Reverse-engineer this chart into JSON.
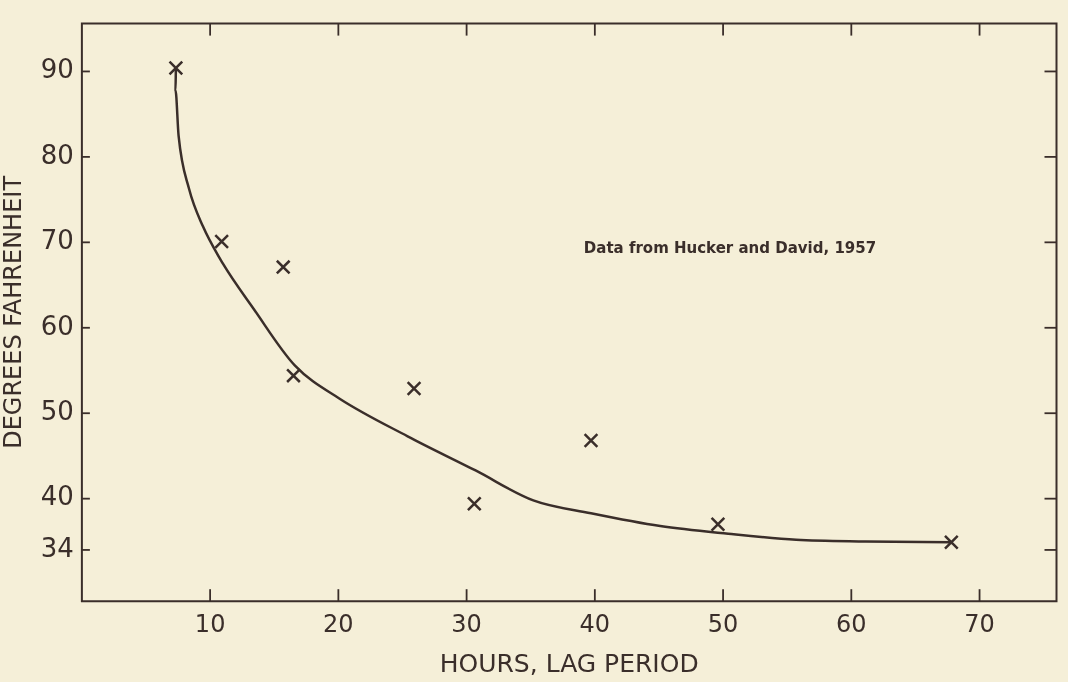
{
  "chart_data": {
    "type": "scatter",
    "xlabel": "HOURS, LAG PERIOD",
    "ylabel": "DEGREES FAHRENHEIT",
    "annotations": [
      "Data from Hucker and David, 1957"
    ],
    "xlim": [
      0,
      76
    ],
    "ylim": [
      28,
      95.6
    ],
    "xticks": [
      10,
      20,
      30,
      40,
      50,
      60,
      70
    ],
    "yticks": [
      34,
      40,
      50,
      60,
      70,
      80,
      90
    ],
    "grid": false,
    "legend": false,
    "series": [
      {
        "marker": "cross",
        "color": "#3a2e2a",
        "x": [
          7.33,
          10.9,
          15.7,
          16.5,
          25.9,
          30.6,
          39.7,
          49.6,
          67.8
        ],
        "values": [
          90.4,
          70.1,
          67.1,
          54.4,
          52.9,
          39.4,
          46.8,
          37.0,
          34.9
        ]
      },
      {
        "type": "line",
        "marker": "none",
        "color": "#3a2e2a",
        "x": [
          7.33,
          7.3,
          7.54,
          8.35,
          9.43,
          11.0,
          13.4,
          16.6,
          20.1,
          25.4,
          30.7,
          35.2,
          39.7,
          45.1,
          50.4,
          55.7,
          61.1,
          67.8
        ],
        "values": [
          90.4,
          87.8,
          82.5,
          76.3,
          71.9,
          67.5,
          62.2,
          55.6,
          51.7,
          47.3,
          43.3,
          39.8,
          38.3,
          36.8,
          35.9,
          35.2,
          35.0,
          34.9
        ]
      }
    ]
  }
}
